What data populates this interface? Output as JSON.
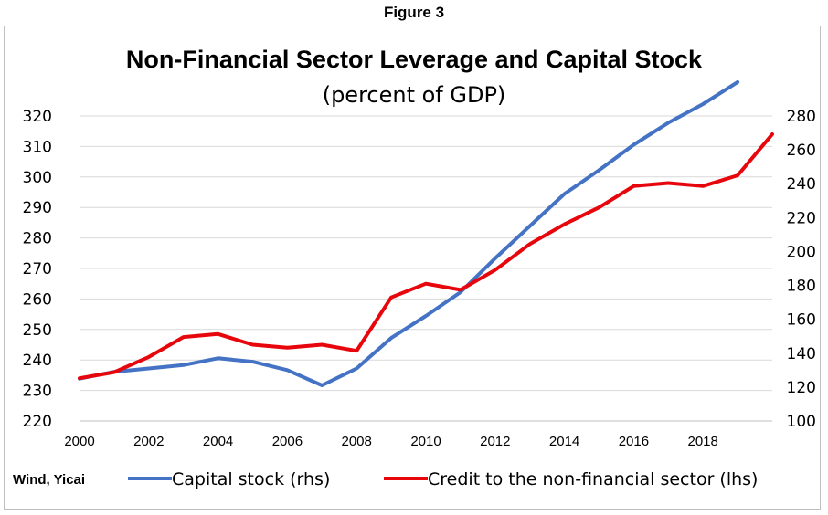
{
  "figure_label": "Figure 3",
  "source": "Wind, Yicai",
  "colors": {
    "capital_stock": "#4472c4",
    "credit": "#e8060d",
    "grid": "#d9d9d9"
  },
  "chart_data": {
    "type": "line",
    "title": "Non-Financial Sector Leverage and Capital Stock",
    "subtitle": "(percent of GDP)",
    "xlabel": "",
    "ylabel": "",
    "x": [
      2000,
      2001,
      2002,
      2003,
      2004,
      2005,
      2006,
      2007,
      2008,
      2009,
      2010,
      2011,
      2012,
      2013,
      2014,
      2015,
      2016,
      2017,
      2018,
      2019,
      2020
    ],
    "x_tick_labels": [
      "2000",
      "2002",
      "2004",
      "2006",
      "2008",
      "2010",
      "2012",
      "2014",
      "2016",
      "2018"
    ],
    "x_range": [
      2000,
      2020
    ],
    "y_left": {
      "ylim": [
        220,
        320
      ],
      "ticks": [
        "220",
        "230",
        "240",
        "250",
        "260",
        "270",
        "280",
        "290",
        "300",
        "310",
        "320"
      ]
    },
    "y_right": {
      "ylim": [
        100,
        280
      ],
      "ticks": [
        "100",
        "120",
        "140",
        "160",
        "180",
        "200",
        "220",
        "240",
        "260",
        "280"
      ]
    },
    "grid": true,
    "legend_position": "bottom",
    "series": [
      {
        "name": "Capital stock (rhs)",
        "axis": "right",
        "x": [
          2000,
          2001,
          2002,
          2003,
          2004,
          2005,
          2006,
          2007,
          2008,
          2009,
          2010,
          2011,
          2012,
          2013,
          2014,
          2015,
          2016,
          2017,
          2018,
          2019
        ],
        "values": [
          125,
          129,
          131,
          133,
          137,
          135,
          130,
          121,
          131,
          149,
          162,
          176,
          196,
          215,
          234,
          248,
          263,
          276,
          287,
          300
        ]
      },
      {
        "name": "Credit to the non-financial sector (lhs)",
        "axis": "left",
        "x": [
          2000,
          2001,
          2002,
          2003,
          2004,
          2005,
          2006,
          2007,
          2008,
          2009,
          2010,
          2011,
          2012,
          2013,
          2014,
          2015,
          2016,
          2017,
          2018,
          2019,
          2020
        ],
        "values": [
          234,
          236,
          241,
          247.5,
          248.5,
          245,
          244,
          245,
          243,
          260.5,
          265,
          263,
          269.5,
          278,
          284.5,
          290,
          297,
          298,
          297,
          300.5,
          314
        ]
      }
    ]
  }
}
